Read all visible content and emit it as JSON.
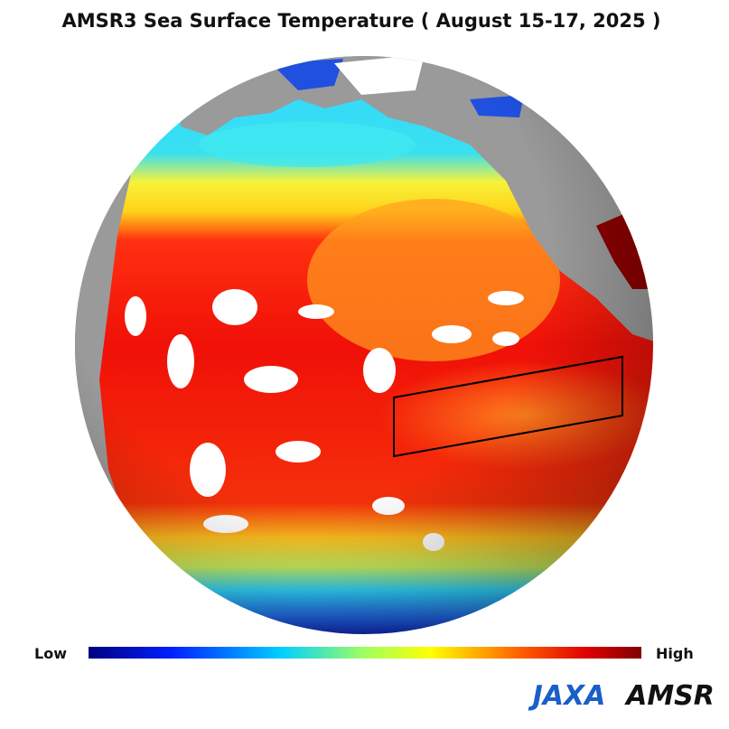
{
  "title": "AMSR3 Sea Surface Temperature ( August 15-17, 2025 )",
  "colorbar": {
    "low_label": "Low",
    "high_label": "High"
  },
  "logos": [
    "JAXA",
    "AMSR"
  ]
}
